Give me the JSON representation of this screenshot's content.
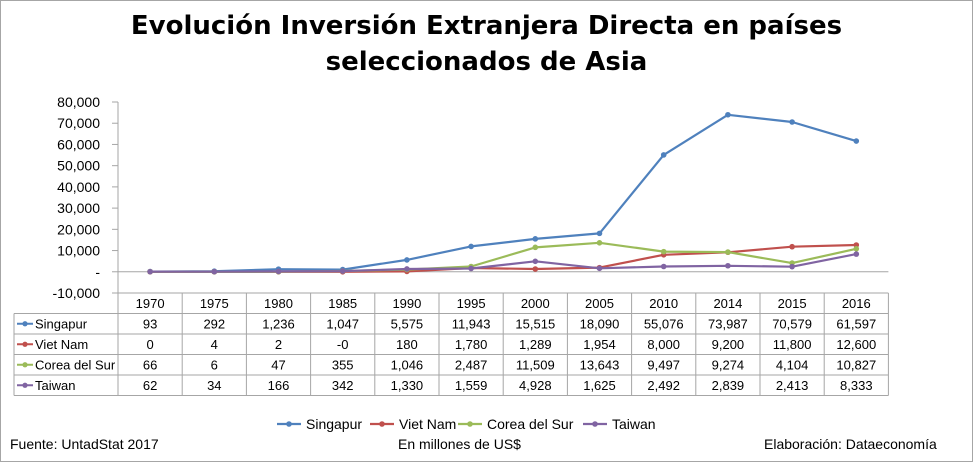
{
  "colors": {
    "Singapur": "#4f81bd",
    "Viet Nam": "#c0504d",
    "Corea del Sur": "#9bbb59",
    "Taiwan": "#8064a2"
  },
  "chart_data": {
    "type": "line",
    "title_line1": "Evolución Inversión Extranjera Directa en países",
    "title_line2": "seleccionados de Asia",
    "categories": [
      "1970",
      "1975",
      "1980",
      "1985",
      "1990",
      "1995",
      "2000",
      "2005",
      "2010",
      "2014",
      "2015",
      "2016"
    ],
    "ylim": [
      -10000,
      80000
    ],
    "yticks": [
      80000,
      70000,
      60000,
      50000,
      40000,
      30000,
      20000,
      10000,
      0,
      -10000
    ],
    "ytick_labels": [
      "80,000",
      "70,000",
      "60,000",
      "50,000",
      "40,000",
      "30,000",
      "20,000",
      "10,000",
      "-",
      "-10,000"
    ],
    "series": [
      {
        "name": "Singapur",
        "values": [
          93,
          292,
          1236,
          1047,
          5575,
          11943,
          15515,
          18090,
          55076,
          73987,
          70579,
          61597
        ],
        "labels": [
          "93",
          "292",
          "1,236",
          "1,047",
          "5,575",
          "11,943",
          "15,515",
          "18,090",
          "55,076",
          "73,987",
          "70,579",
          "61,597"
        ]
      },
      {
        "name": "Viet Nam",
        "values": [
          0,
          4,
          2,
          0,
          180,
          1780,
          1289,
          1954,
          8000,
          9200,
          11800,
          12600
        ],
        "labels": [
          "0",
          "4",
          "2",
          "-0",
          "180",
          "1,780",
          "1,289",
          "1,954",
          "8,000",
          "9,200",
          "11,800",
          "12,600"
        ]
      },
      {
        "name": "Corea del Sur",
        "values": [
          66,
          6,
          47,
          355,
          1046,
          2487,
          11509,
          13643,
          9497,
          9274,
          4104,
          10827
        ],
        "labels": [
          "66",
          "6",
          "47",
          "355",
          "1,046",
          "2,487",
          "11,509",
          "13,643",
          "9,497",
          "9,274",
          "4,104",
          "10,827"
        ]
      },
      {
        "name": "Taiwan",
        "values": [
          62,
          34,
          166,
          342,
          1330,
          1559,
          4928,
          1625,
          2492,
          2839,
          2413,
          8333
        ],
        "labels": [
          "62",
          "34",
          "166",
          "342",
          "1,330",
          "1,559",
          "4,928",
          "1,625",
          "2,492",
          "2,839",
          "2,413",
          "8,333"
        ]
      }
    ],
    "legend_position": "bottom",
    "grid": false
  },
  "footer": {
    "source": "Fuente: UntadStat 2017",
    "units": "En millones de US$",
    "credit": "Elaboración: Dataeconomía"
  }
}
